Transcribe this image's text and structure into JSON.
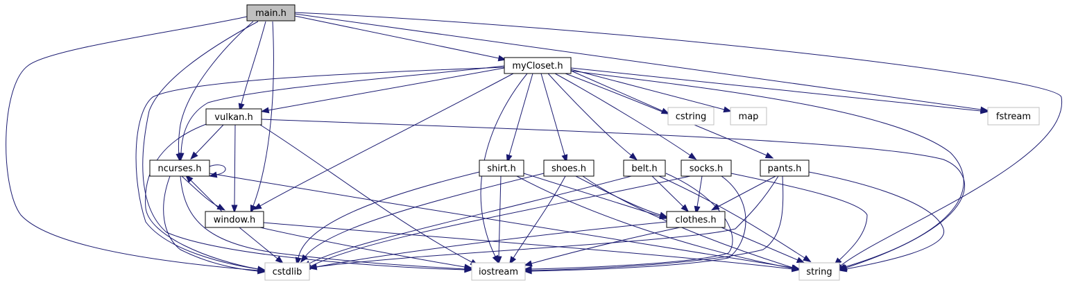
{
  "colors": {
    "edge": "#191970",
    "root_fill": "#bfbfbf",
    "project_border": "#000000",
    "system_border": "#bfbfbf",
    "background": "#ffffff"
  },
  "nodes": {
    "main": {
      "label": "main.h",
      "kind": "root"
    },
    "mycloset": {
      "label": "myCloset.h",
      "kind": "project"
    },
    "vulkan": {
      "label": "vulkan.h",
      "kind": "project"
    },
    "ncurses": {
      "label": "ncurses.h",
      "kind": "project"
    },
    "window": {
      "label": "window.h",
      "kind": "project"
    },
    "shirt": {
      "label": "shirt.h",
      "kind": "project"
    },
    "shoes": {
      "label": "shoes.h",
      "kind": "project"
    },
    "belt": {
      "label": "belt.h",
      "kind": "project"
    },
    "socks": {
      "label": "socks.h",
      "kind": "project"
    },
    "pants": {
      "label": "pants.h",
      "kind": "project"
    },
    "clothes": {
      "label": "clothes.h",
      "kind": "project"
    },
    "cstring": {
      "label": "cstring",
      "kind": "system"
    },
    "map": {
      "label": "map",
      "kind": "system"
    },
    "fstream": {
      "label": "fstream",
      "kind": "system"
    },
    "cstdlib": {
      "label": "cstdlib",
      "kind": "system"
    },
    "iostream": {
      "label": "iostream",
      "kind": "system"
    },
    "string": {
      "label": "string",
      "kind": "system"
    }
  },
  "edges": [
    {
      "from": "main",
      "to": "mycloset"
    },
    {
      "from": "main",
      "to": "fstream"
    },
    {
      "from": "main",
      "to": "string"
    },
    {
      "from": "main",
      "to": "cstdlib"
    },
    {
      "from": "main",
      "to": "iostream"
    },
    {
      "from": "main",
      "to": "ncurses"
    },
    {
      "from": "main",
      "to": "vulkan"
    },
    {
      "from": "main",
      "to": "window"
    },
    {
      "from": "mycloset",
      "to": "vulkan"
    },
    {
      "from": "mycloset",
      "to": "ncurses"
    },
    {
      "from": "mycloset",
      "to": "cstdlib"
    },
    {
      "from": "mycloset",
      "to": "window"
    },
    {
      "from": "mycloset",
      "to": "iostream"
    },
    {
      "from": "mycloset",
      "to": "shirt"
    },
    {
      "from": "mycloset",
      "to": "shoes"
    },
    {
      "from": "mycloset",
      "to": "belt"
    },
    {
      "from": "mycloset",
      "to": "socks"
    },
    {
      "from": "mycloset",
      "to": "pants"
    },
    {
      "from": "mycloset",
      "to": "cstring"
    },
    {
      "from": "mycloset",
      "to": "map"
    },
    {
      "from": "mycloset",
      "to": "fstream"
    },
    {
      "from": "mycloset",
      "to": "string"
    },
    {
      "from": "vulkan",
      "to": "ncurses"
    },
    {
      "from": "vulkan",
      "to": "window"
    },
    {
      "from": "vulkan",
      "to": "cstdlib"
    },
    {
      "from": "vulkan",
      "to": "iostream"
    },
    {
      "from": "vulkan",
      "to": "string"
    },
    {
      "from": "ncurses",
      "to": "ncurses"
    },
    {
      "from": "ncurses",
      "to": "window"
    },
    {
      "from": "ncurses",
      "to": "cstdlib"
    },
    {
      "from": "ncurses",
      "to": "iostream"
    },
    {
      "from": "ncurses",
      "to": "string"
    },
    {
      "from": "window",
      "to": "ncurses"
    },
    {
      "from": "window",
      "to": "cstdlib"
    },
    {
      "from": "window",
      "to": "iostream"
    },
    {
      "from": "window",
      "to": "string"
    },
    {
      "from": "shirt",
      "to": "clothes"
    },
    {
      "from": "shirt",
      "to": "cstdlib"
    },
    {
      "from": "shirt",
      "to": "iostream"
    },
    {
      "from": "shirt",
      "to": "string"
    },
    {
      "from": "shoes",
      "to": "clothes"
    },
    {
      "from": "shoes",
      "to": "cstdlib"
    },
    {
      "from": "shoes",
      "to": "iostream"
    },
    {
      "from": "shoes",
      "to": "string"
    },
    {
      "from": "belt",
      "to": "clothes"
    },
    {
      "from": "belt",
      "to": "cstdlib"
    },
    {
      "from": "belt",
      "to": "iostream"
    },
    {
      "from": "belt",
      "to": "string"
    },
    {
      "from": "socks",
      "to": "clothes"
    },
    {
      "from": "socks",
      "to": "cstdlib"
    },
    {
      "from": "socks",
      "to": "iostream"
    },
    {
      "from": "socks",
      "to": "string"
    },
    {
      "from": "pants",
      "to": "clothes"
    },
    {
      "from": "pants",
      "to": "cstdlib"
    },
    {
      "from": "pants",
      "to": "iostream"
    },
    {
      "from": "pants",
      "to": "string"
    },
    {
      "from": "clothes",
      "to": "cstdlib"
    },
    {
      "from": "clothes",
      "to": "iostream"
    },
    {
      "from": "clothes",
      "to": "string"
    }
  ]
}
